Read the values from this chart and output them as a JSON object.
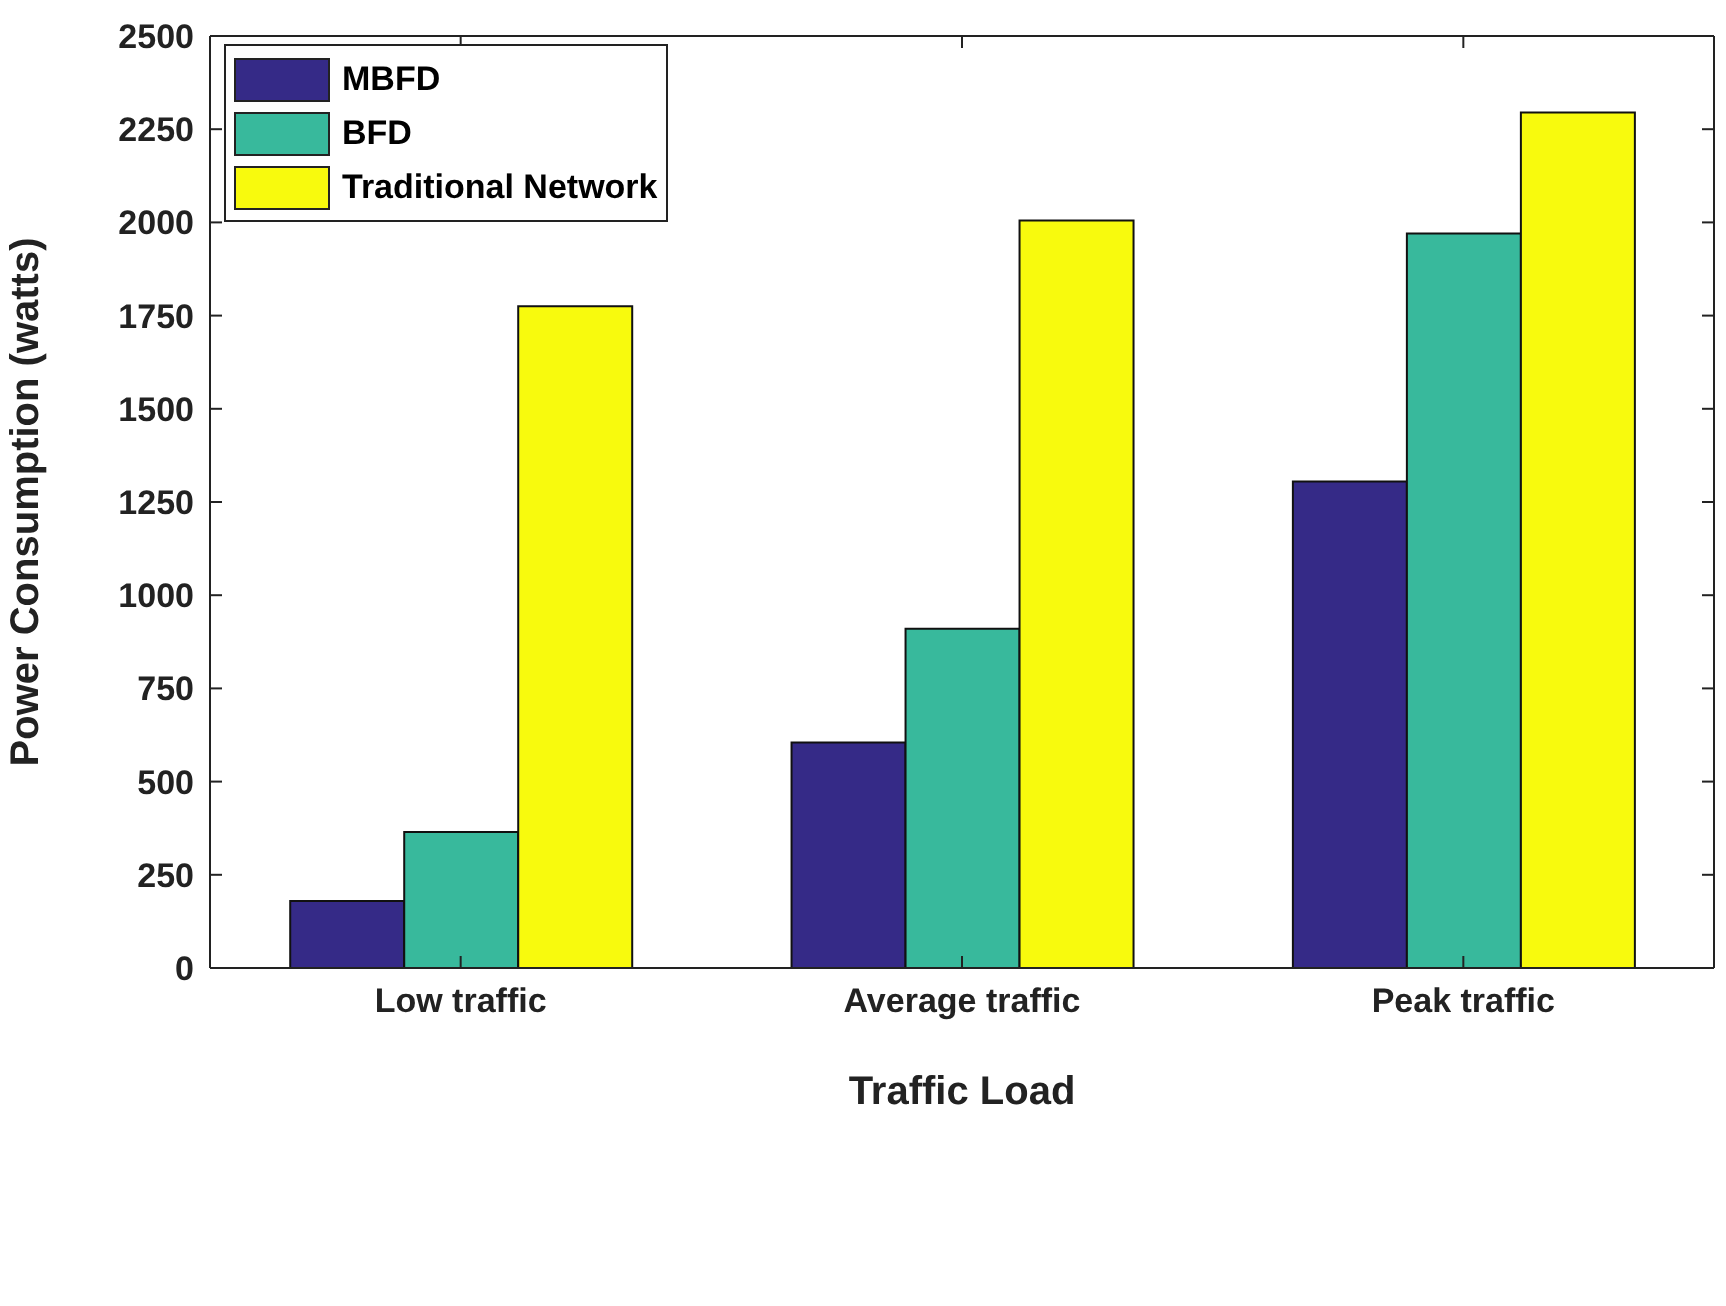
{
  "chart_data": {
    "type": "bar",
    "xlabel": "Traffic Load",
    "ylabel": "Power Consumption (watts)",
    "categories": [
      "Low traffic",
      "Average traffic",
      "Peak traffic"
    ],
    "series": [
      {
        "name": "MBFD",
        "color": "#352a87",
        "values": [
          180,
          605,
          1305
        ]
      },
      {
        "name": "BFD",
        "color": "#38b99c",
        "values": [
          365,
          910,
          1970
        ]
      },
      {
        "name": "Traditional Network",
        "color": "#f8fa0d",
        "values": [
          1775,
          2005,
          2295
        ]
      }
    ],
    "ylim": [
      0,
      2500
    ],
    "yticks": [
      0,
      250,
      500,
      750,
      1000,
      1250,
      1500,
      1750,
      2000,
      2250,
      2500
    ],
    "legend": "top left"
  }
}
